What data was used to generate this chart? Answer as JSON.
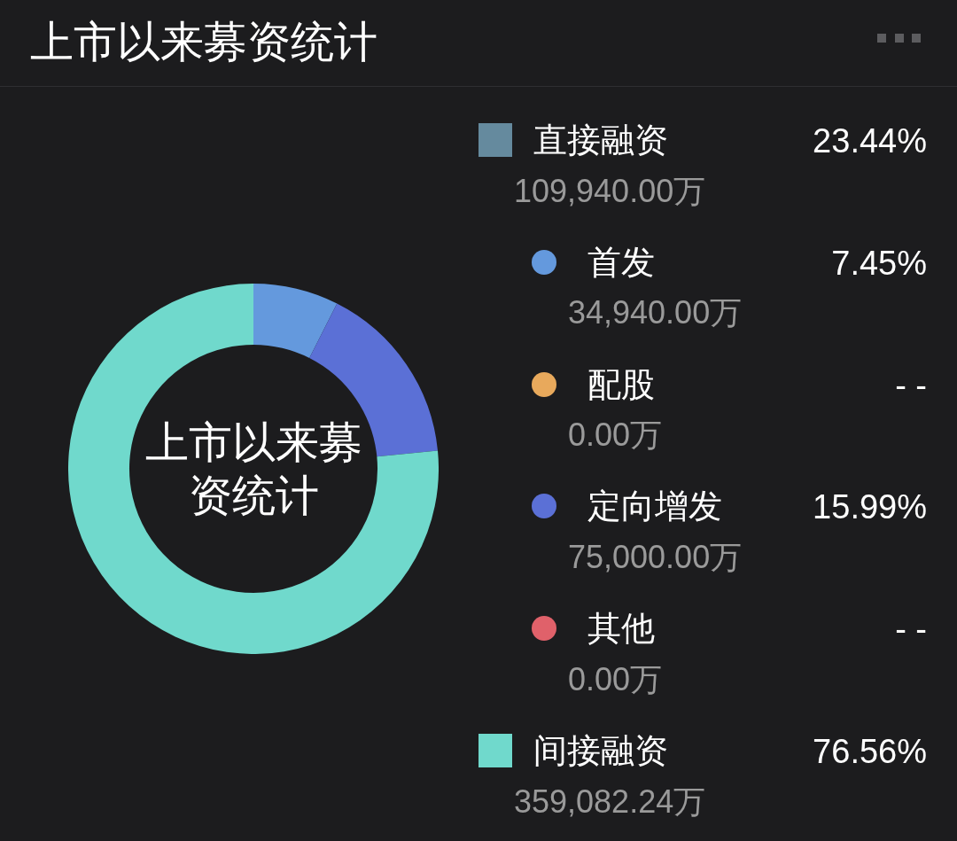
{
  "chart_data": {
    "type": "donut",
    "title": "上市以来募资统计",
    "categories": [
      "首发",
      "配股",
      "定向增发",
      "其他",
      "间接融资"
    ],
    "values": [
      34940,
      0,
      75000,
      0,
      359082.24
    ],
    "colors": [
      "#6499dd",
      "#e8a95c",
      "#5b70d6",
      "#e0616a",
      "#70d9cc"
    ],
    "value_labels": [
      "34,940.00万",
      "0.00万",
      "75,000.00万",
      "0.00万",
      "359,082.24万"
    ],
    "annotations": [
      "上市以来募资统计",
      "直接融资",
      "109,940.00万",
      "23.44%",
      "7.45%",
      "- -",
      "15.99%",
      "- -",
      "76.56%"
    ],
    "legend": "right"
  }
}
